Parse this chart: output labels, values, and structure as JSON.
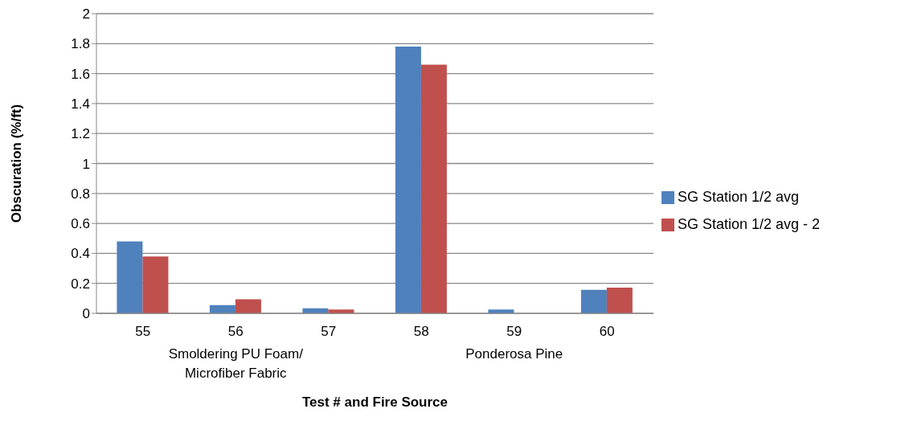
{
  "chart_data": {
    "type": "bar",
    "categories": [
      "55",
      "56",
      "57",
      "58",
      "59",
      "60"
    ],
    "series": [
      {
        "name": "SG Station 1/2 avg",
        "color": "#4f81bd",
        "values": [
          0.48,
          0.055,
          0.033,
          1.78,
          0.025,
          0.157
        ]
      },
      {
        "name": "SG Station 1/2 avg - 2",
        "color": "#c0504d",
        "values": [
          0.38,
          0.094,
          0.025,
          1.66,
          0,
          0.171
        ]
      }
    ],
    "xlabel": "Test # and Fire Source",
    "ylabel": "Obscuration (%/ft)",
    "ylim": [
      0,
      2
    ],
    "yticks": [
      0,
      0.2,
      0.4,
      0.6,
      0.8,
      1,
      1.2,
      1.4,
      1.6,
      1.8,
      2
    ],
    "grid": "y",
    "legend": "right",
    "annotations": [
      "Smoldering PU Foam/ Microfiber Fabric",
      "Ponderosa Pine"
    ]
  }
}
